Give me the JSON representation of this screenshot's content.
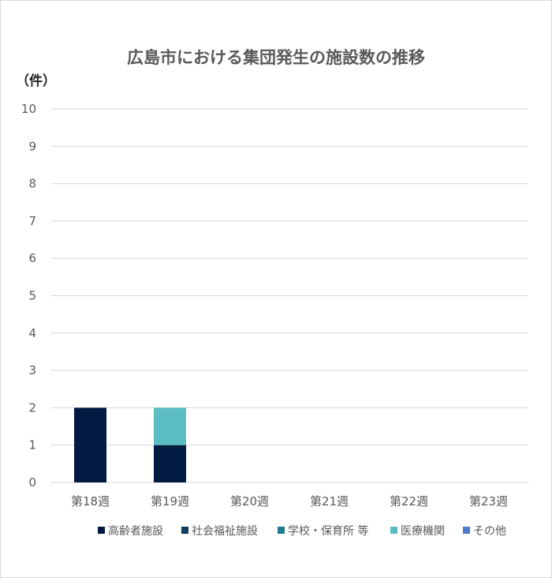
{
  "chart_data": {
    "type": "bar",
    "stacked": true,
    "title": "広島市における集団発生の施設数の推移",
    "ylabel": "（件）",
    "xlabel": "",
    "ylim": [
      0,
      10
    ],
    "yticks": [
      "0",
      "1",
      "2",
      "3",
      "4",
      "5",
      "6",
      "7",
      "8",
      "9",
      "10"
    ],
    "categories": [
      "第18週",
      "第19週",
      "第20週",
      "第21週",
      "第22週",
      "第23週"
    ],
    "series": [
      {
        "name": "高齢者施設",
        "color": "#011a41",
        "values": [
          2,
          1,
          0,
          0,
          0,
          0
        ]
      },
      {
        "name": "社会福祉施設",
        "color": "#0f3d5c",
        "values": [
          0,
          0,
          0,
          0,
          0,
          0
        ]
      },
      {
        "name": "学校・保育所 等",
        "color": "#1f7a8c",
        "values": [
          0,
          0,
          0,
          0,
          0,
          0
        ]
      },
      {
        "name": "医療機関",
        "color": "#5bbcc3",
        "values": [
          0,
          1,
          0,
          0,
          0,
          0
        ]
      },
      {
        "name": "その他",
        "color": "#4a7ac6",
        "values": [
          0,
          0,
          0,
          0,
          0,
          0
        ]
      }
    ],
    "grid": true,
    "legend_position": "bottom"
  }
}
